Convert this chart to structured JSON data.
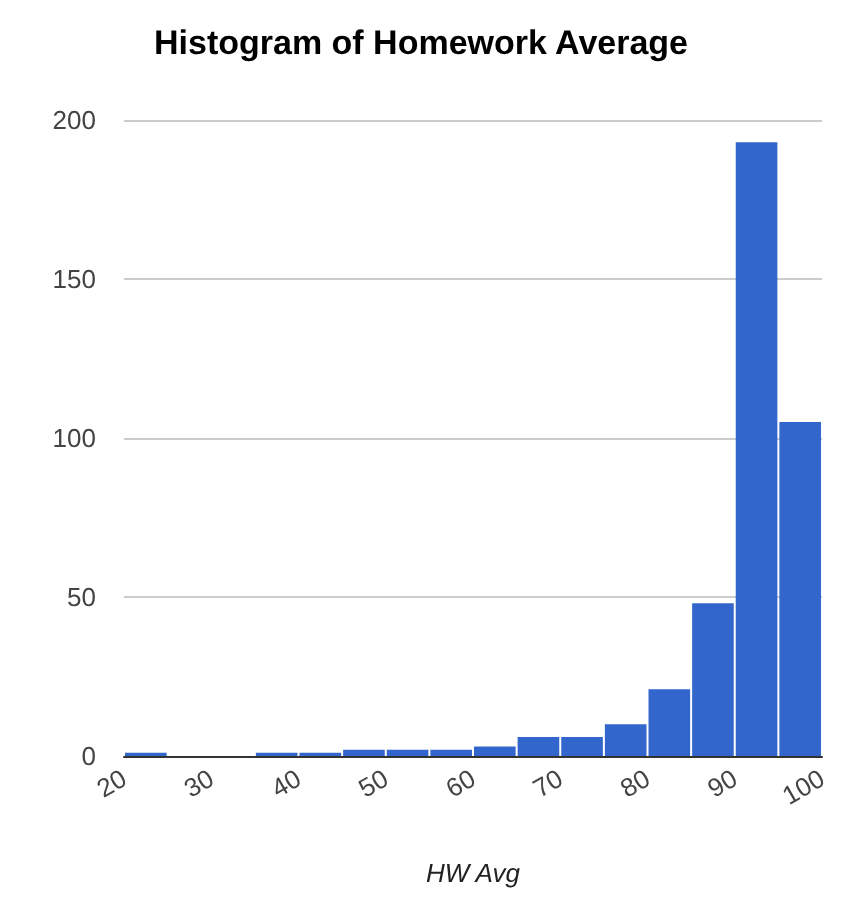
{
  "chart_data": {
    "type": "histogram",
    "title": "Histogram of Homework Average",
    "xlabel": "HW Avg",
    "bins": [
      20,
      25,
      30,
      35,
      40,
      45,
      50,
      55,
      60,
      65,
      70,
      75,
      80,
      85,
      90,
      95,
      100
    ],
    "values": [
      1,
      0,
      0,
      1,
      1,
      2,
      2,
      2,
      3,
      6,
      6,
      10,
      21,
      48,
      193,
      105
    ],
    "color": "#3366cc",
    "xlim": [
      20,
      100
    ],
    "xticks": [
      20,
      30,
      40,
      50,
      60,
      70,
      80,
      90,
      100
    ],
    "ylim": [
      0,
      200
    ],
    "yticks": [
      0,
      50,
      100,
      150,
      200
    ],
    "grid": "y"
  }
}
